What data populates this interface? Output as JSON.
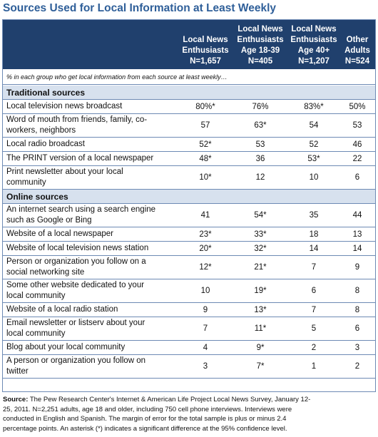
{
  "title": "Sources Used for Local Information at Least Weekly",
  "columns": [
    {
      "lines": [
        "Local News",
        "Enthusiasts",
        "N=1,657"
      ]
    },
    {
      "lines": [
        "Local News",
        "Enthusiasts",
        "Age 18-39",
        "N=405"
      ]
    },
    {
      "lines": [
        "Local News",
        "Enthusiasts",
        "Age 40+",
        "N=1,207"
      ]
    },
    {
      "lines": [
        "Other",
        "Adults",
        "N=524"
      ]
    }
  ],
  "subtitle_note": "% in each group who get local information from each source at least weekly…",
  "sections": [
    {
      "title": "Traditional sources",
      "rows": [
        {
          "label": [
            "Local television news broadcast"
          ],
          "values": [
            "80%*",
            "76%",
            "83%*",
            "50%"
          ]
        },
        {
          "label": [
            "Word of mouth from friends, family, co-",
            "workers, neighbors"
          ],
          "values": [
            "57",
            "63*",
            "54",
            "53"
          ]
        },
        {
          "label": [
            "Local radio broadcast"
          ],
          "values": [
            "52*",
            "53",
            "52",
            "46"
          ]
        },
        {
          "label": [
            "The PRINT version of a local newspaper"
          ],
          "values": [
            "48*",
            "36",
            "53*",
            "22"
          ]
        },
        {
          "label": [
            "Print newsletter about your local",
            "community"
          ],
          "values": [
            "10*",
            "12",
            "10",
            "6"
          ]
        }
      ]
    },
    {
      "title": "Online sources",
      "rows": [
        {
          "label": [
            "An internet search using a search engine",
            "such as Google or Bing"
          ],
          "values": [
            "41",
            "54*",
            "35",
            "44"
          ]
        },
        {
          "label": [
            "Website of a local newspaper"
          ],
          "values": [
            "23*",
            "33*",
            "18",
            "13"
          ]
        },
        {
          "label": [
            "Website of local television news station"
          ],
          "values": [
            "20*",
            "32*",
            "14",
            "14"
          ]
        },
        {
          "label": [
            "Person or organization you follow on a",
            "social networking site"
          ],
          "values": [
            "12*",
            "21*",
            "7",
            "9"
          ]
        },
        {
          "label": [
            "Some other website dedicated to your",
            "local community"
          ],
          "values": [
            "10",
            "19*",
            "6",
            "8"
          ]
        },
        {
          "label": [
            "Website of a local radio station"
          ],
          "values": [
            "9",
            "13*",
            "7",
            "8"
          ]
        },
        {
          "label": [
            "Email newsletter or listserv about your",
            "local community"
          ],
          "values": [
            "7",
            "11*",
            "5",
            "6"
          ]
        },
        {
          "label": [
            "Blog about your local community"
          ],
          "values": [
            "4",
            "9*",
            "2",
            "3"
          ]
        },
        {
          "label": [
            "A person or organization you follow on",
            "twitter"
          ],
          "values": [
            "3",
            "7*",
            "1",
            "2"
          ]
        }
      ]
    }
  ],
  "source": {
    "label": "Source:",
    "lines": [
      "The Pew Research Center's Internet & American Life Project Local News Survey, January 12-",
      "25, 2011. N=2,251 adults, age 18 and older, including 750 cell phone interviews. Interviews were",
      "conducted in English and Spanish. The margin of error for the total sample is plus or minus 2.4",
      "percentage points.  An asterisk (*) indicates a significant difference at the 95% confidence level."
    ]
  },
  "colors": {
    "header_bg": "#20406d",
    "title": "#2f5f99",
    "section_bg": "#d7e1ee",
    "rule": "#6d8ab4"
  }
}
